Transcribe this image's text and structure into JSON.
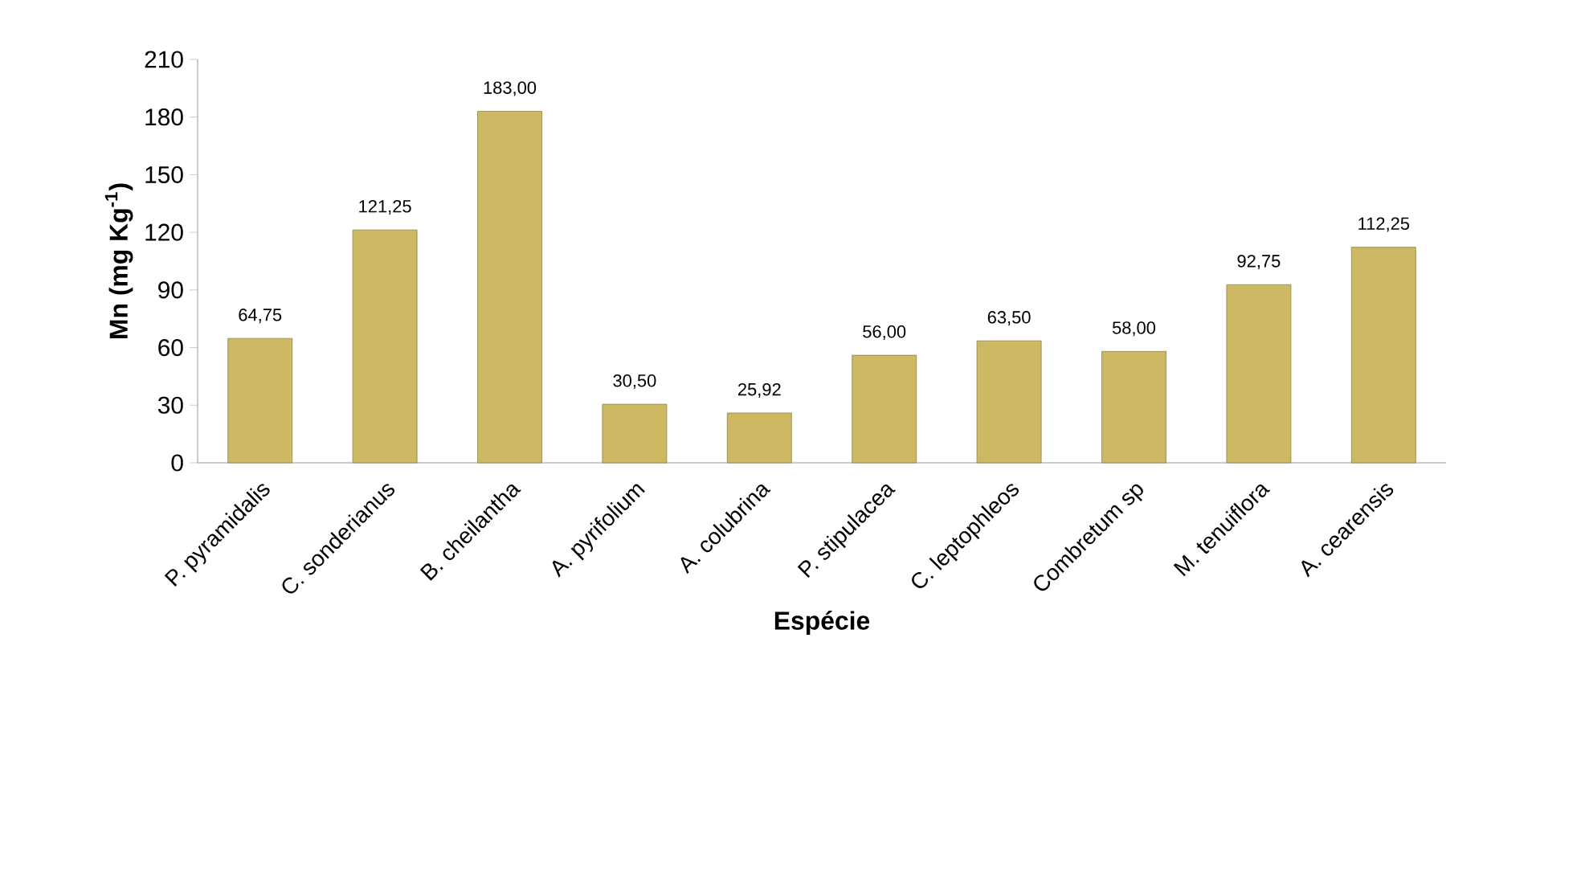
{
  "chart_data": {
    "type": "bar",
    "xlabel": "Espécie",
    "ylabel": "Mn (mg Kg$^{-1}$)",
    "categories": [
      "P. pyramidalis",
      "C. sonderianus",
      "B. cheilantha",
      "A. pyrifolium",
      "A. colubrina",
      "P. stipulacea",
      "C. leptophleos",
      "Combretum sp",
      "M. tenuiflora",
      "A. cearensis"
    ],
    "values": [
      64.75,
      121.25,
      183.0,
      30.5,
      25.92,
      56.0,
      63.5,
      58.0,
      92.75,
      112.25
    ],
    "value_labels": [
      "64,75",
      "121,25",
      "183,00",
      "30,50",
      "25,92",
      "56,00",
      "63,50",
      "58,00",
      "92,75",
      "112,25"
    ],
    "color": "#cdb964",
    "ylim": [
      0,
      210
    ],
    "yticks": [
      0,
      30,
      60,
      90,
      120,
      150,
      180,
      210
    ],
    "grid": false
  }
}
